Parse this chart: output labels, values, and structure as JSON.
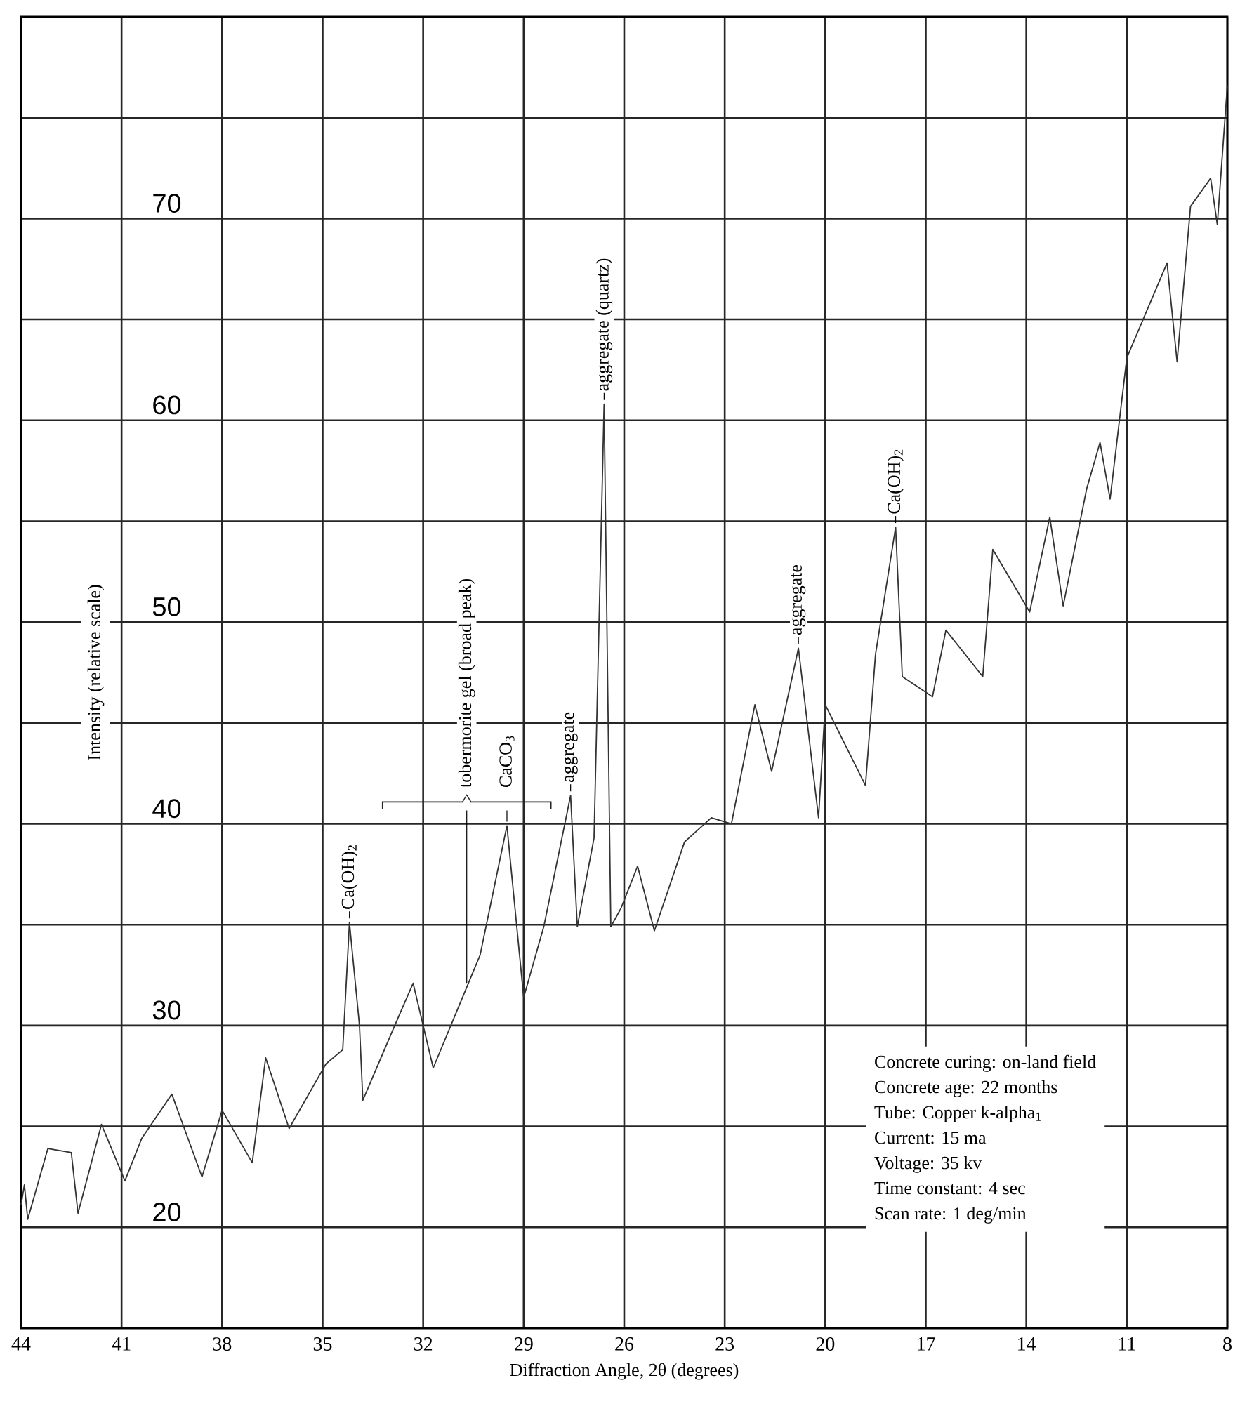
{
  "chart_data": {
    "type": "line",
    "xlabel": "Diffraction Angle, 2θ (degrees)",
    "ylabel": "Intensity (relative scale)",
    "xlim": [
      44,
      8
    ],
    "ylim": [
      15,
      80
    ],
    "xticks": [
      44,
      41,
      38,
      35,
      32,
      29,
      26,
      23,
      20,
      17,
      14,
      11,
      8
    ],
    "yticks": [
      20,
      {
        "value": 25,
        "label": null
      },
      30,
      {
        "value": 35,
        "label": null
      },
      40,
      {
        "value": 45,
        "label": null
      },
      50,
      {
        "value": 55,
        "label": null
      },
      60,
      {
        "value": 65,
        "label": null
      },
      70,
      {
        "value": 75,
        "label": null
      }
    ],
    "grid": true,
    "series": [
      {
        "color": "#333333",
        "x": [
          44.0,
          43.9,
          43.8,
          43.2,
          42.5,
          42.3,
          41.6,
          40.9,
          40.4,
          39.5,
          38.6,
          38.0,
          37.1,
          36.7,
          36.0,
          34.9,
          34.4,
          34.2,
          33.9,
          33.8,
          32.9,
          32.3,
          31.7,
          30.7,
          30.3,
          29.5,
          29.0,
          28.4,
          27.6,
          27.4,
          26.9,
          26.6,
          26.4,
          26.1,
          25.6,
          25.1,
          24.2,
          23.4,
          22.8,
          22.1,
          21.6,
          20.8,
          20.2,
          20.0,
          18.8,
          18.5,
          17.9,
          17.7,
          16.8,
          16.4,
          15.3,
          15.0,
          13.9,
          13.3,
          12.9,
          12.2,
          11.8,
          11.5,
          11.0,
          9.8,
          9.5,
          9.1,
          8.5,
          8.3,
          8.0
        ],
        "values": [
          21.1,
          22.1,
          20.4,
          23.9,
          23.7,
          20.7,
          25.1,
          22.3,
          24.4,
          26.6,
          22.5,
          25.8,
          23.2,
          28.4,
          24.9,
          28.1,
          28.8,
          35.1,
          30.0,
          26.3,
          29.8,
          32.1,
          27.9,
          31.9,
          33.5,
          39.9,
          31.4,
          34.9,
          41.4,
          34.9,
          39.3,
          60.8,
          34.9,
          35.8,
          37.9,
          34.7,
          39.1,
          40.3,
          40.0,
          45.9,
          42.6,
          48.7,
          40.3,
          45.9,
          41.9,
          48.4,
          54.7,
          47.3,
          46.3,
          49.6,
          47.3,
          53.6,
          50.5,
          55.2,
          50.8,
          56.6,
          58.9,
          56.1,
          63.1,
          67.8,
          62.9,
          70.6,
          72.0,
          69.7,
          76.6
        ]
      }
    ],
    "annotations": [
      {
        "text": "tobermorite gel (broad peak)",
        "x": 30.7,
        "y": 31.9
      },
      {
        "text": "Ca(OH)$_{2}$",
        "x": 34.2,
        "y": 35.1
      },
      {
        "text": "CaCO$_{3}$",
        "x": 29.5,
        "y": 39.9
      },
      {
        "text": "aggregate",
        "x": 27.6,
        "y": 41.4
      },
      {
        "text": "aggregate (quartz)",
        "x": 26.6,
        "y": 60.8
      },
      {
        "text": "aggregate",
        "x": 20.8,
        "y": 48.7
      },
      {
        "text": "Ca(OH)$_{2}$",
        "x": 17.9,
        "y": 54.7
      },
      "Concrete curing: on-land field",
      "Concrete age: 22 months",
      "Tube: Copper k-alpha$_{1}$",
      "Current: 15 ma",
      "Voltage: 35 kv",
      "Time constant: 4 sec",
      "Scan rate: 1 deg/min"
    ]
  }
}
